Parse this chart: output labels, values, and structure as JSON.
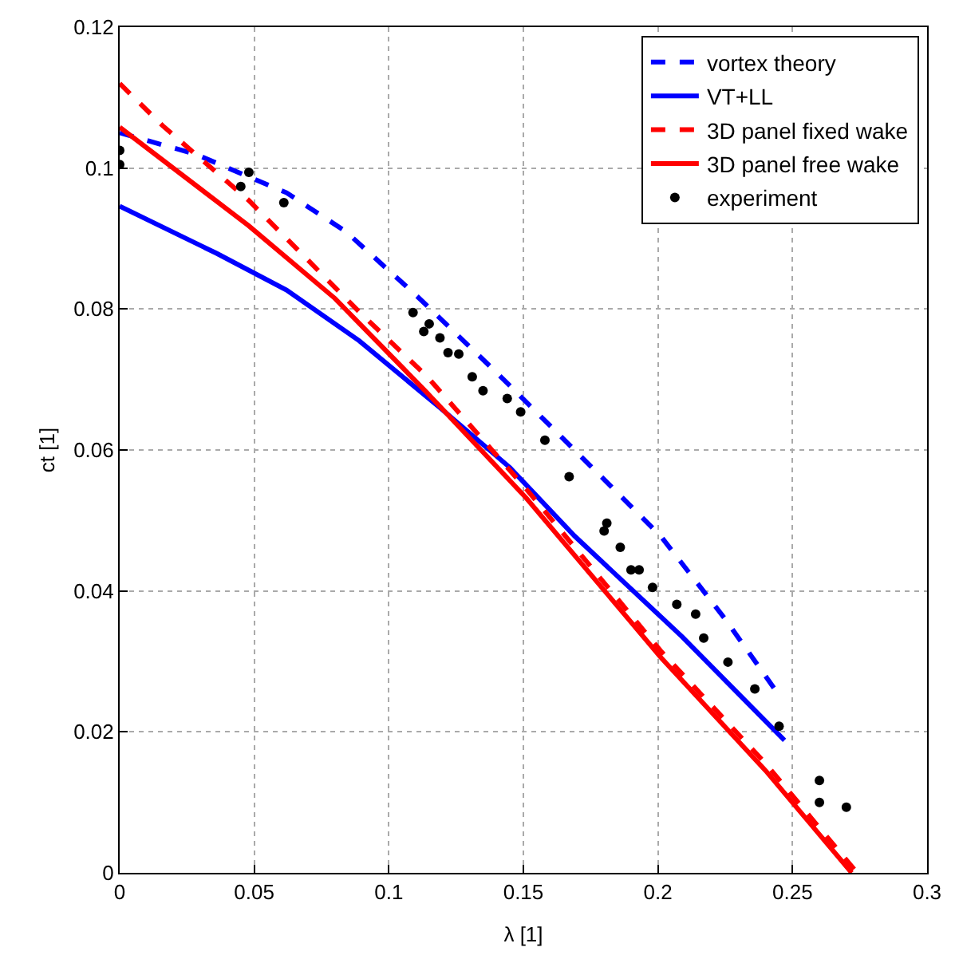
{
  "chart_data": {
    "type": "line",
    "xlabel": "λ [1]",
    "ylabel": "ct [1]",
    "xlim": [
      0,
      0.3
    ],
    "ylim": [
      0,
      0.12
    ],
    "xticks": [
      0,
      0.05,
      0.1,
      0.15,
      0.2,
      0.25,
      0.3
    ],
    "yticks": [
      0,
      0.02,
      0.04,
      0.06,
      0.08,
      0.1,
      0.12
    ],
    "grid": true,
    "legend": "top right",
    "series": [
      {
        "name": "vortex theory",
        "color": "#0000ff",
        "line_style": "dashed",
        "x": [
          0,
          0.028,
          0.062,
          0.084,
          0.11,
          0.14,
          0.169,
          0.201,
          0.225,
          0.245
        ],
        "values": [
          0.105,
          0.102,
          0.0965,
          0.091,
          0.082,
          0.071,
          0.06,
          0.0478,
          0.036,
          0.0252
        ]
      },
      {
        "name": "VT+LL",
        "color": "#0000ff",
        "line_style": "solid",
        "x": [
          0,
          0.036,
          0.062,
          0.089,
          0.119,
          0.145,
          0.169,
          0.209,
          0.247
        ],
        "values": [
          0.0946,
          0.0879,
          0.0827,
          0.0755,
          0.066,
          0.0575,
          0.0478,
          0.0335,
          0.0188
        ]
      },
      {
        "name": "3D panel fixed wake",
        "color": "#ff0000",
        "line_style": "dashed",
        "x": [
          0,
          0.016,
          0.048,
          0.089,
          0.114,
          0.151,
          0.201,
          0.24,
          0.274
        ],
        "values": [
          0.112,
          0.106,
          0.0954,
          0.0796,
          0.0705,
          0.0545,
          0.0315,
          0.0155,
          0
        ]
      },
      {
        "name": "3D panel free wake",
        "color": "#ff0000",
        "line_style": "solid",
        "x": [
          0,
          0.048,
          0.08,
          0.114,
          0.151,
          0.201,
          0.24,
          0.272
        ],
        "values": [
          0.1058,
          0.0918,
          0.0815,
          0.0682,
          0.0532,
          0.0306,
          0.0145,
          0
        ]
      },
      {
        "name": "experiment",
        "type": "scatter",
        "marker": "circle",
        "color": "#000000",
        "x": [
          0,
          0,
          0.048,
          0.045,
          0.061,
          0.109,
          0.115,
          0.113,
          0.119,
          0.122,
          0.126,
          0.131,
          0.135,
          0.144,
          0.149,
          0.158,
          0.167,
          0.18,
          0.181,
          0.186,
          0.19,
          0.193,
          0.198,
          0.207,
          0.214,
          0.217,
          0.226,
          0.236,
          0.245,
          0.26,
          0.26,
          0.27
        ],
        "values": [
          0.1025,
          0.1005,
          0.0994,
          0.0974,
          0.0951,
          0.0795,
          0.0779,
          0.0768,
          0.0759,
          0.0738,
          0.0736,
          0.0704,
          0.0684,
          0.0673,
          0.0654,
          0.0614,
          0.0562,
          0.0485,
          0.0496,
          0.0462,
          0.043,
          0.043,
          0.0405,
          0.0381,
          0.0367,
          0.0333,
          0.0299,
          0.0261,
          0.0208,
          0.0131,
          0.01,
          0.0093
        ]
      }
    ]
  }
}
